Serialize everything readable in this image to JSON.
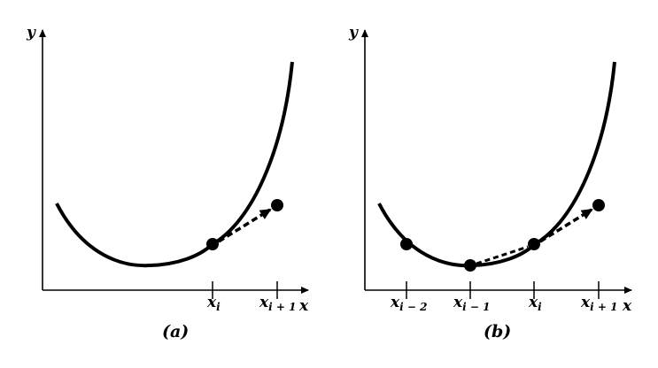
{
  "panels": [
    {
      "caption": "(a)",
      "y_axis_label": "y",
      "x_axis_label": "x",
      "ticks": [
        {
          "base": "x",
          "sub": "i"
        },
        {
          "base": "x",
          "sub": "i + 1"
        }
      ]
    },
    {
      "caption": "(b)",
      "y_axis_label": "y",
      "x_axis_label": "x",
      "ticks": [
        {
          "base": "x",
          "sub": "i − 2"
        },
        {
          "base": "x",
          "sub": "i − 1"
        },
        {
          "base": "x",
          "sub": "i"
        },
        {
          "base": "x",
          "sub": "i + 1"
        }
      ]
    }
  ],
  "colors": {
    "ink": "#000000",
    "background": "#ffffff"
  }
}
